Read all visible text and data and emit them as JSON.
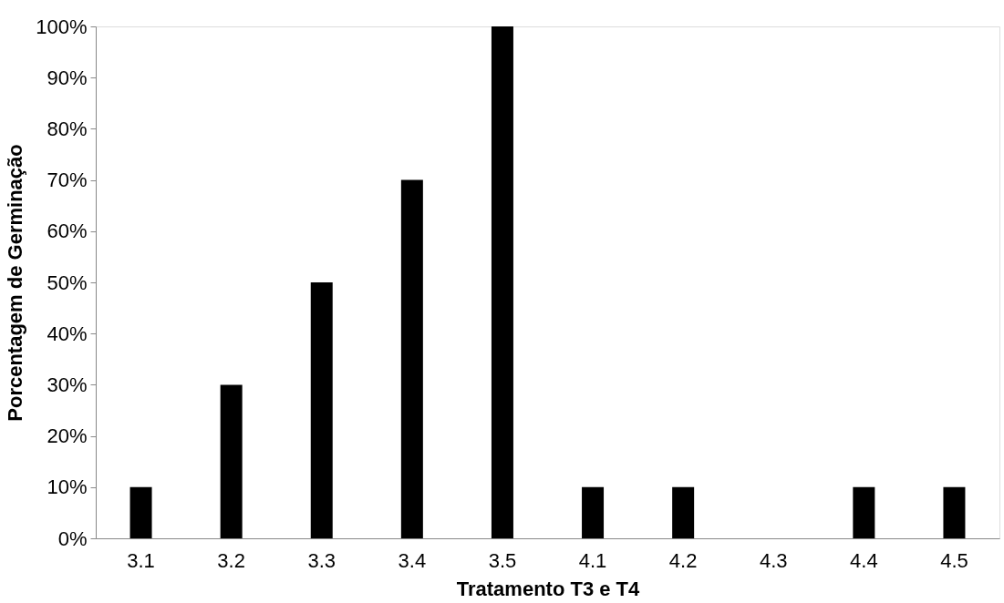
{
  "chart_data": {
    "type": "bar",
    "xlabel": "Tratamento T3 e T4",
    "ylabel": "Porcentagem de Germinação",
    "categories": [
      "3.1",
      "3.2",
      "3.3",
      "3.4",
      "3.5",
      "4.1",
      "4.2",
      "4.3",
      "4.4",
      "4.5"
    ],
    "values": [
      10,
      30,
      50,
      70,
      100,
      10,
      10,
      0,
      10,
      10
    ],
    "color": "#000000",
    "ylim": [
      0,
      100
    ],
    "yticks": [
      {
        "value": 0,
        "label": "0%"
      },
      {
        "value": 10,
        "label": "10%"
      },
      {
        "value": 20,
        "label": "20%"
      },
      {
        "value": 30,
        "label": "30%"
      },
      {
        "value": 40,
        "label": "40%"
      },
      {
        "value": 50,
        "label": "50%"
      },
      {
        "value": 60,
        "label": "60%"
      },
      {
        "value": 70,
        "label": "70%"
      },
      {
        "value": 80,
        "label": "80%"
      },
      {
        "value": 90,
        "label": "90%"
      },
      {
        "value": 100,
        "label": "100%"
      }
    ],
    "grid": false
  }
}
